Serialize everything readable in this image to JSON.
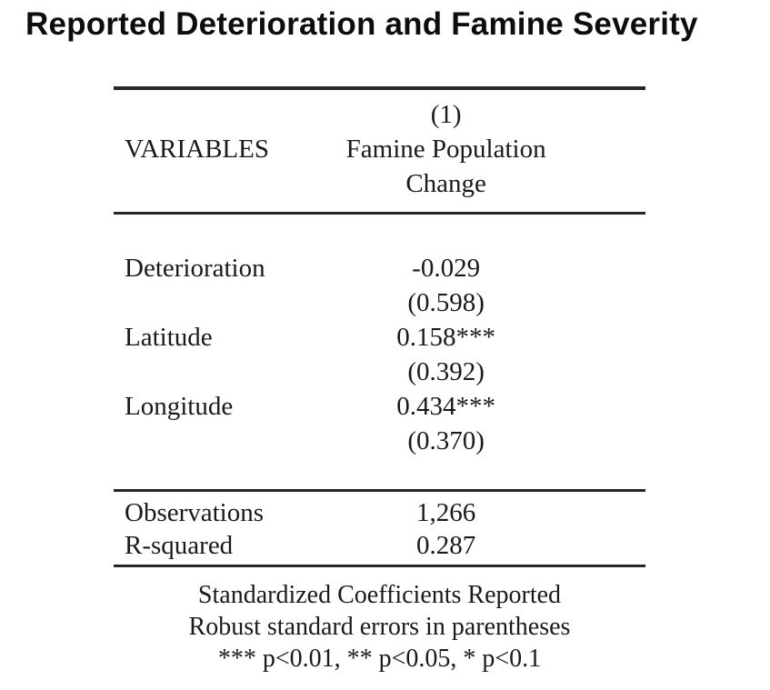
{
  "title": "Reported Deterioration and Famine Severity",
  "table": {
    "header": {
      "variables_label": "VARIABLES",
      "column_number": "(1)",
      "column_title_line1": "Famine Population",
      "column_title_line2": "Change"
    },
    "coefficient_rows": [
      {
        "label": "Deterioration",
        "coefficient": "-0.029",
        "std_error": "(0.598)"
      },
      {
        "label": "Latitude",
        "coefficient": "0.158***",
        "std_error": "(0.392)"
      },
      {
        "label": "Longitude",
        "coefficient": "0.434***",
        "std_error": "(0.370)"
      }
    ],
    "stats_rows": [
      {
        "label": "Observations",
        "value": "1,266"
      },
      {
        "label": "R-squared",
        "value": "0.287"
      }
    ],
    "notes": [
      "Standardized Coefficients Reported",
      "Robust standard errors in parentheses",
      "*** p<0.01, ** p<0.05, * p<0.1"
    ]
  },
  "colors": {
    "background": "#ffffff",
    "text": "#1a1a1a",
    "rule": "#262626"
  }
}
